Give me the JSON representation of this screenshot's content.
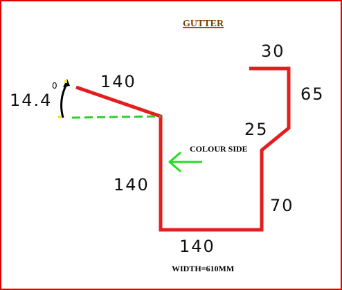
{
  "title": "GUTTER",
  "colour_side_label": "COLOUR SIDE",
  "width_label": "WIDTH=610MM",
  "angle": {
    "value": "14.4",
    "unit": "0"
  },
  "dimensions": {
    "top_return": "30",
    "right_upper": "65",
    "right_step": "25",
    "right_lower": "70",
    "bottom": "140",
    "left_vertical": "140",
    "slope": "140"
  },
  "colors": {
    "profile": "#e41e1e",
    "reference_line": "#2ecc2e",
    "arrow": "#22dd22",
    "border": "#e00000",
    "title": "#7a3b00"
  }
}
